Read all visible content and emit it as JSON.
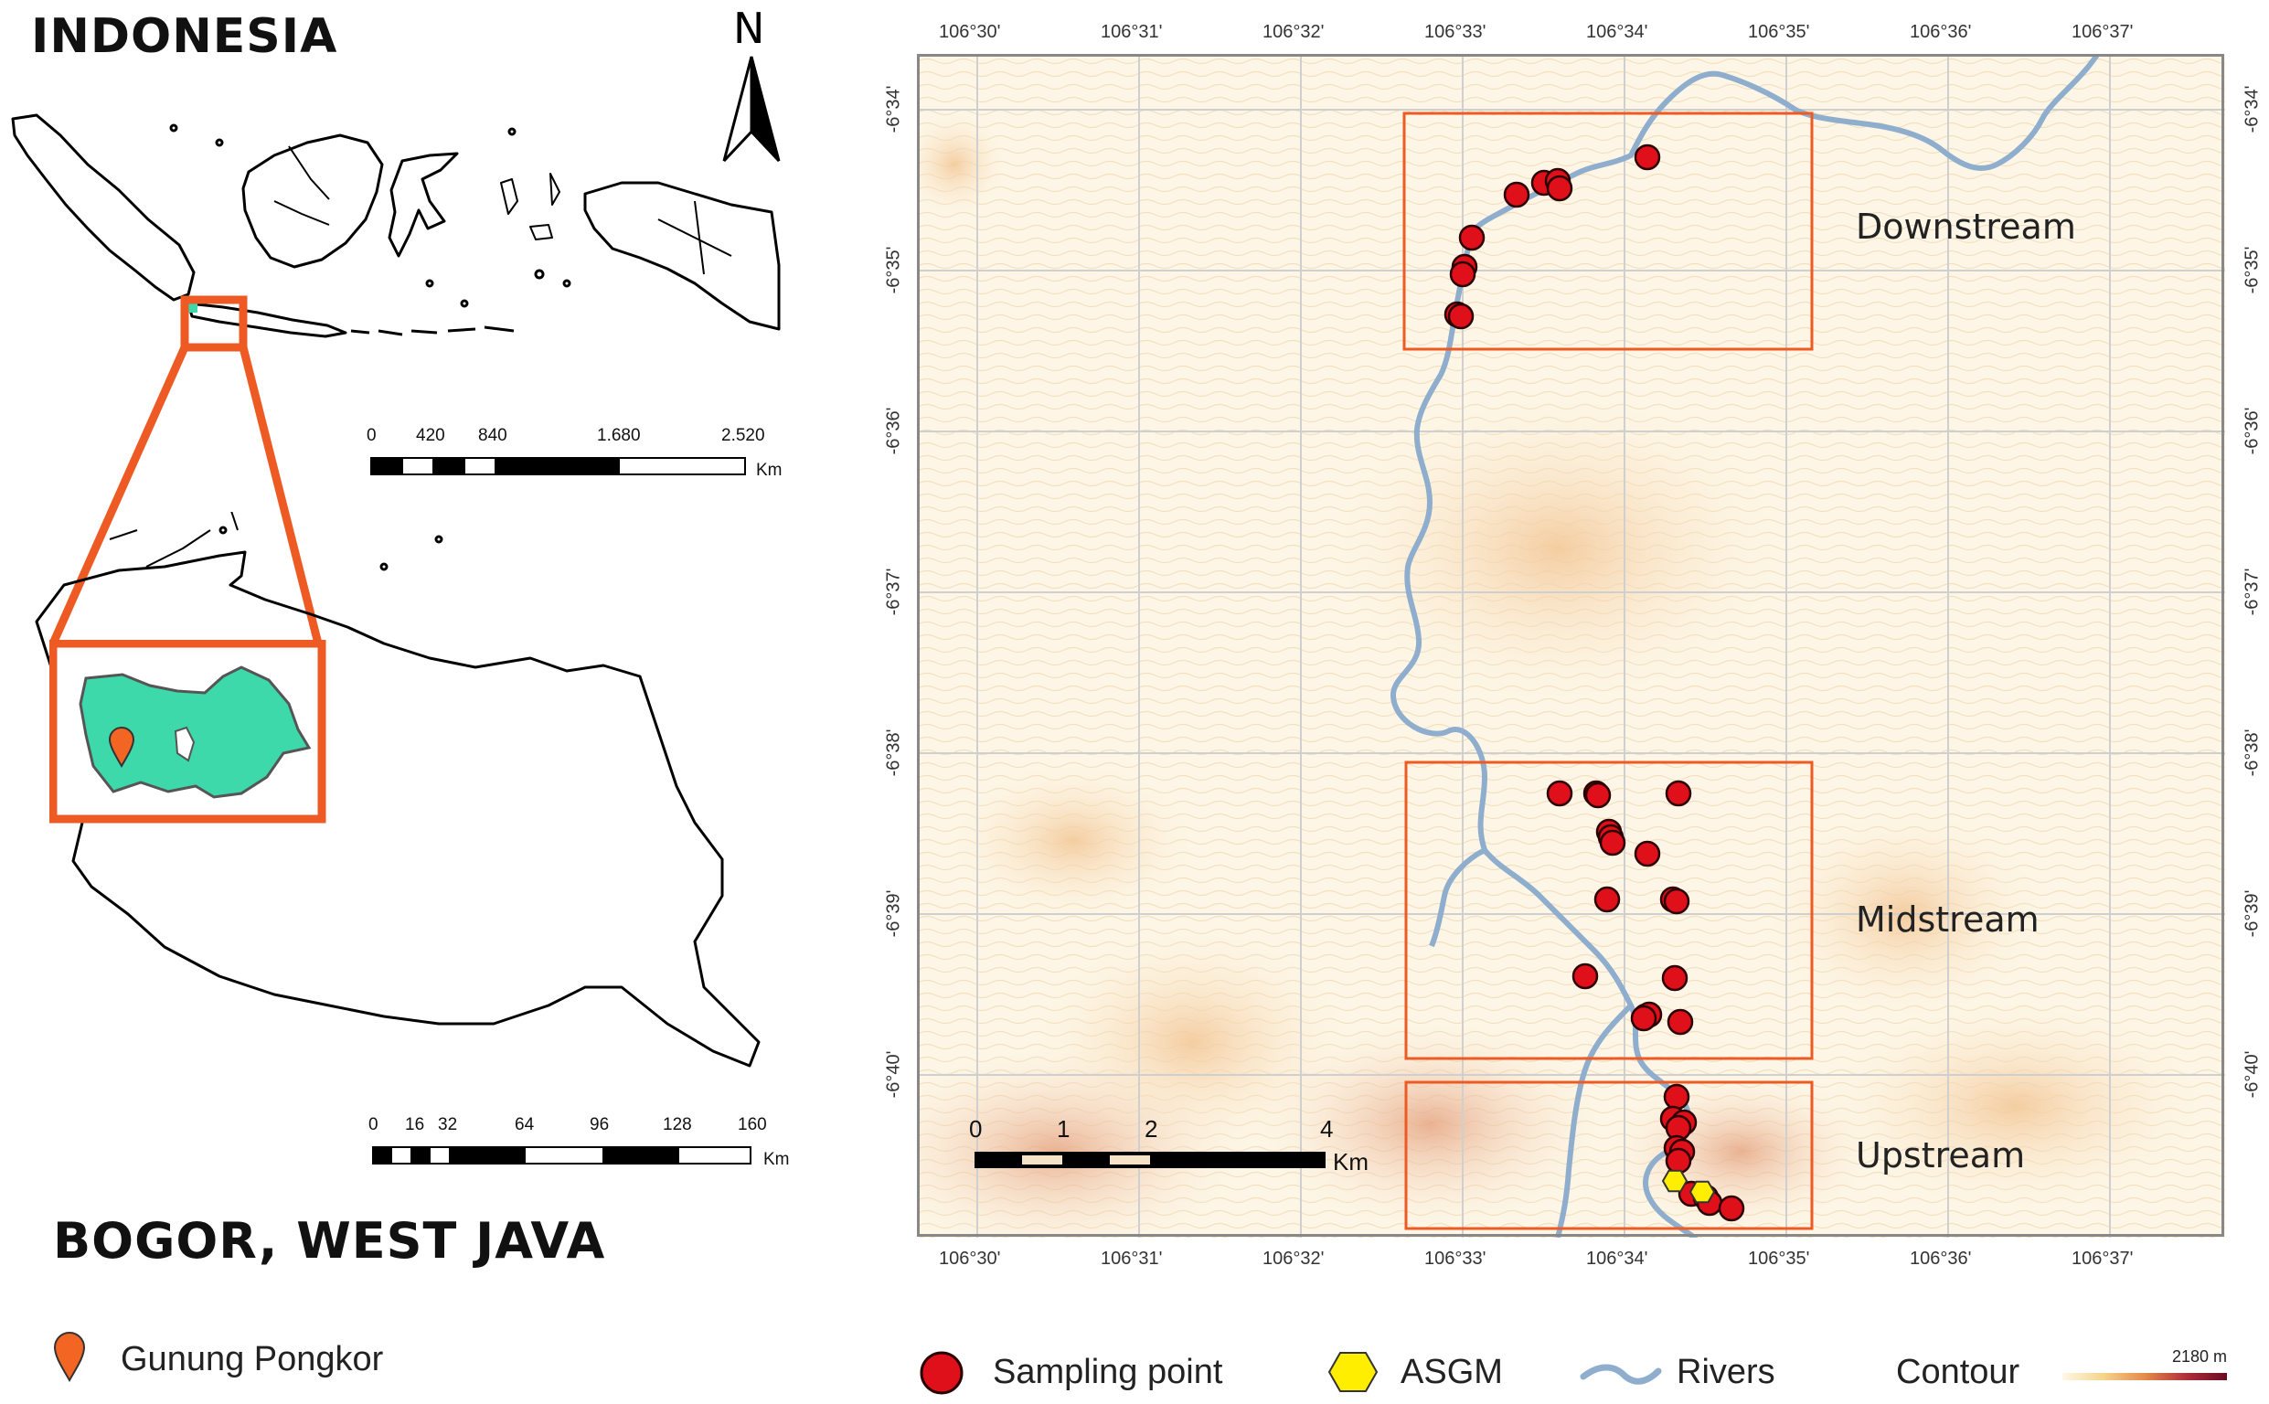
{
  "titles": {
    "country": "INDONESIA",
    "region": "BOGOR, WEST JAVA"
  },
  "north_arrow": {
    "letter": "N"
  },
  "scalebar_indonesia": {
    "labels": [
      "0",
      "420",
      "840",
      "1.680",
      "2.520"
    ],
    "unit": "Km"
  },
  "scalebar_westjava": {
    "labels": [
      "0",
      "16",
      "32",
      "64",
      "96",
      "128",
      "160"
    ],
    "unit": "Km"
  },
  "scalebar_main": {
    "labels": [
      "0",
      "1",
      "2",
      "4"
    ],
    "unit": "Km"
  },
  "legend_left": {
    "location_label": "Gunung Pongkor",
    "marker_color": "#f26522"
  },
  "legend_bottom": {
    "sampling_label": "Sampling point",
    "asgm_label": "ASGM",
    "rivers_label": "Rivers",
    "contour_label": "Contour",
    "contour_max": "2180 m"
  },
  "map_grid": {
    "longitudes": [
      "106°30'",
      "106°31'",
      "106°32'",
      "106°33'",
      "106°34'",
      "106°35'",
      "106°36'",
      "106°37'"
    ],
    "latitudes": [
      "-6°34'",
      "-6°35'",
      "-6°36'",
      "-6°37'",
      "-6°38'",
      "-6°39'",
      "-6°40'"
    ]
  },
  "zones": {
    "downstream": "Downstream",
    "midstream": "Midstream",
    "upstream": "Upstream"
  },
  "colors": {
    "box_orange": "#ee5a24",
    "highlight_fill": "#3dd9aa",
    "sampling_point": "#e0101a",
    "asgm": "#ffee00",
    "river": "#8fadcc"
  }
}
